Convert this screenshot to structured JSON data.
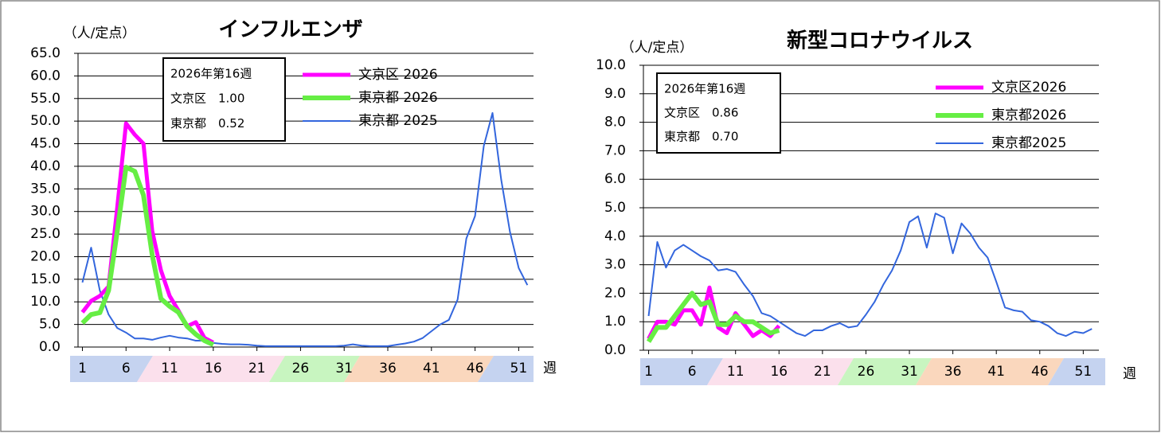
{
  "chart_data": [
    {
      "type": "line",
      "title": "インフルエンザ",
      "ylabel": "（人/定点）",
      "xlabel": "週",
      "x": [
        1,
        2,
        3,
        4,
        5,
        6,
        7,
        8,
        9,
        10,
        11,
        12,
        13,
        14,
        15,
        16,
        17,
        18,
        19,
        20,
        21,
        22,
        23,
        24,
        25,
        26,
        27,
        28,
        29,
        30,
        31,
        32,
        33,
        34,
        35,
        36,
        37,
        38,
        39,
        40,
        41,
        42,
        43,
        44,
        45,
        46,
        47,
        48,
        49,
        50,
        51,
        52
      ],
      "xlim": [
        0.5,
        52.7
      ],
      "xticks": [
        1,
        6,
        11,
        16,
        21,
        26,
        31,
        36,
        41,
        46,
        51
      ],
      "ylim": [
        0,
        65
      ],
      "yticks": [
        {
          "value": 0,
          "label": "0.0"
        },
        {
          "value": 5,
          "label": "5.0"
        },
        {
          "value": 10,
          "label": "10.0"
        },
        {
          "value": 15,
          "label": "15.0"
        },
        {
          "value": 20,
          "label": "20.0"
        },
        {
          "value": 25,
          "label": "25.0"
        },
        {
          "value": 30,
          "label": "30.0"
        },
        {
          "value": 35,
          "label": "35.0"
        },
        {
          "value": 40,
          "label": "40.0"
        },
        {
          "value": 45,
          "label": "45.0"
        },
        {
          "value": 50,
          "label": "50.0"
        },
        {
          "value": 55,
          "label": "55.0"
        },
        {
          "value": 60,
          "label": "60.0"
        },
        {
          "value": 65,
          "label": "65.0"
        }
      ],
      "grid": true,
      "legend": "upper center",
      "info_box": [
        "2026年第16週",
        "文京区　1.00",
        "東京都　0.52"
      ],
      "series": [
        {
          "name": "文京区 2026",
          "color": "#ff00ff",
          "values": [
            7.7,
            10.2,
            11.3,
            13.4,
            31,
            49.5,
            47,
            45,
            25.7,
            17,
            11.3,
            8.1,
            4.6,
            5.5,
            2,
            1.0,
            null,
            null,
            null,
            null,
            null,
            null,
            null,
            null,
            null,
            null,
            null,
            null,
            null,
            null,
            null,
            null,
            null,
            null,
            null,
            null,
            null,
            null,
            null,
            null,
            null,
            null,
            null,
            null,
            null,
            null,
            null,
            null,
            null,
            null,
            null,
            null
          ]
        },
        {
          "name": "東京都 2026",
          "color": "#66ee44",
          "values": [
            5.3,
            7.2,
            7.6,
            12.5,
            25.7,
            39.8,
            38.9,
            33.6,
            20.4,
            10.7,
            9,
            7.7,
            4.6,
            2.8,
            1.4,
            0.52,
            null,
            null,
            null,
            null,
            null,
            null,
            null,
            null,
            null,
            null,
            null,
            null,
            null,
            null,
            null,
            null,
            null,
            null,
            null,
            null,
            null,
            null,
            null,
            null,
            null,
            null,
            null,
            null,
            null,
            null,
            null,
            null,
            null,
            null,
            null,
            null
          ]
        },
        {
          "name": "東京都 2025",
          "color": "#3366dd",
          "values": [
            14.3,
            22,
            12.5,
            7.2,
            4.2,
            3.2,
            1.9,
            1.9,
            1.6,
            2.1,
            2.5,
            2.1,
            1.9,
            1.4,
            1.4,
            0.9,
            0.7,
            0.6,
            0.6,
            0.5,
            0.3,
            0.2,
            0.2,
            0.2,
            0.2,
            0.2,
            0.2,
            0.2,
            0.2,
            0.2,
            0.3,
            0.6,
            0.3,
            0.2,
            0.2,
            0.2,
            0.5,
            0.8,
            1.2,
            2.0,
            3.5,
            5.0,
            6.0,
            10.5,
            24,
            29,
            44.5,
            51.8,
            37,
            25.5,
            17.5,
            13.7
          ]
        }
      ]
    },
    {
      "type": "line",
      "title": "新型コロナウイルス",
      "ylabel": "（人/定点）",
      "xlabel": "週",
      "x": [
        1,
        2,
        3,
        4,
        5,
        6,
        7,
        8,
        9,
        10,
        11,
        12,
        13,
        14,
        15,
        16,
        17,
        18,
        19,
        20,
        21,
        22,
        23,
        24,
        25,
        26,
        27,
        28,
        29,
        30,
        31,
        32,
        33,
        34,
        35,
        36,
        37,
        38,
        39,
        40,
        41,
        42,
        43,
        44,
        45,
        46,
        47,
        48,
        49,
        50,
        51,
        52
      ],
      "xlim": [
        0.4,
        52.8
      ],
      "xticks": [
        1,
        6,
        11,
        16,
        21,
        26,
        31,
        36,
        41,
        46,
        51
      ],
      "ylim": [
        0,
        10
      ],
      "yticks": [
        {
          "value": 0,
          "label": "0.0"
        },
        {
          "value": 1,
          "label": "1.0"
        },
        {
          "value": 2,
          "label": "2.0"
        },
        {
          "value": 3,
          "label": "3.0"
        },
        {
          "value": 4,
          "label": "4.0"
        },
        {
          "value": 5,
          "label": "5.0"
        },
        {
          "value": 6,
          "label": "6.0"
        },
        {
          "value": 7,
          "label": "7.0"
        },
        {
          "value": 8,
          "label": "8.0"
        },
        {
          "value": 9,
          "label": "9.0"
        },
        {
          "value": 10,
          "label": "10.0"
        }
      ],
      "grid": true,
      "legend": "upper right",
      "info_box": [
        "2026年第16週",
        "文京区　0.86",
        "東京都　0.70"
      ],
      "series": [
        {
          "name": "文京区2026",
          "color": "#ff00ff",
          "values": [
            0.4,
            1.0,
            1.0,
            0.9,
            1.4,
            1.4,
            0.9,
            2.2,
            0.8,
            0.6,
            1.3,
            0.9,
            0.5,
            0.7,
            0.5,
            0.86,
            null,
            null,
            null,
            null,
            null,
            null,
            null,
            null,
            null,
            null,
            null,
            null,
            null,
            null,
            null,
            null,
            null,
            null,
            null,
            null,
            null,
            null,
            null,
            null,
            null,
            null,
            null,
            null,
            null,
            null,
            null,
            null,
            null,
            null,
            null,
            null
          ]
        },
        {
          "name": "東京都2026",
          "color": "#66ee44",
          "values": [
            0.3,
            0.8,
            0.8,
            1.2,
            1.6,
            2.0,
            1.6,
            1.7,
            0.9,
            0.9,
            1.2,
            1.0,
            1.0,
            0.8,
            0.6,
            0.7,
            null,
            null,
            null,
            null,
            null,
            null,
            null,
            null,
            null,
            null,
            null,
            null,
            null,
            null,
            null,
            null,
            null,
            null,
            null,
            null,
            null,
            null,
            null,
            null,
            null,
            null,
            null,
            null,
            null,
            null,
            null,
            null,
            null,
            null,
            null,
            null
          ]
        },
        {
          "name": "東京都2025",
          "color": "#3366dd",
          "values": [
            1.2,
            3.8,
            2.9,
            3.5,
            3.7,
            3.5,
            3.3,
            3.15,
            2.8,
            2.85,
            2.75,
            2.3,
            1.9,
            1.3,
            1.2,
            1.0,
            0.8,
            0.6,
            0.5,
            0.7,
            0.7,
            0.85,
            0.95,
            0.8,
            0.85,
            1.25,
            1.7,
            2.3,
            2.8,
            3.5,
            4.5,
            4.7,
            3.6,
            4.8,
            4.65,
            3.4,
            4.45,
            4.1,
            3.6,
            3.25,
            2.4,
            1.5,
            1.4,
            1.35,
            1.05,
            1.0,
            0.85,
            0.6,
            0.5,
            0.65,
            0.6,
            0.75
          ]
        }
      ]
    }
  ]
}
